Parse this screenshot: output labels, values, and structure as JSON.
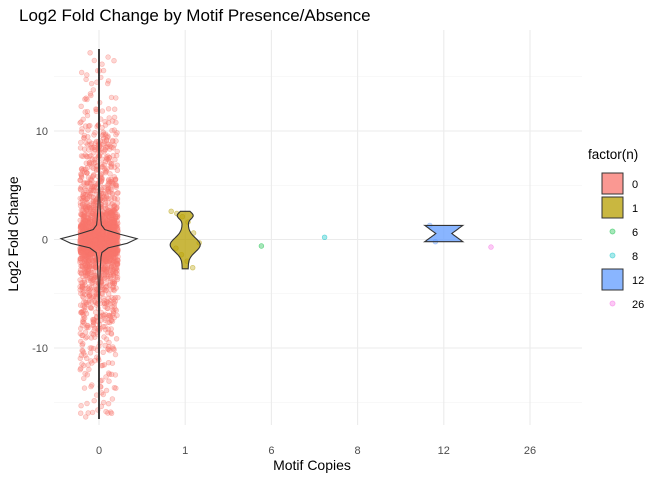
{
  "chart_data": {
    "type": "violin",
    "title": "Log2 Fold Change by Motif Presence/Absence",
    "xlabel": "Motif Copies",
    "ylabel": "Log2 Fold Change",
    "categories": [
      "0",
      "1",
      "6",
      "8",
      "12",
      "26"
    ],
    "y_ticks": [
      -10,
      0,
      10
    ],
    "ylim": [
      -17,
      18
    ],
    "grid": true,
    "legend": {
      "title": "factor(n)",
      "position": "right",
      "entries": [
        {
          "label": "0",
          "color": "#F8766D",
          "key": "violin"
        },
        {
          "label": "1",
          "color": "#B79F00",
          "key": "violin"
        },
        {
          "label": "6",
          "color": "#00BA38",
          "key": "point"
        },
        {
          "label": "8",
          "color": "#00BFC4",
          "key": "point"
        },
        {
          "label": "12",
          "color": "#619CFF",
          "key": "violin"
        },
        {
          "label": "26",
          "color": "#F564E3",
          "key": "point"
        }
      ]
    },
    "groups": [
      {
        "category": "0",
        "n_points_approx": 2000,
        "y_min": -16.5,
        "y_max": 17.5,
        "median": 0,
        "color": "#F8766D"
      },
      {
        "category": "1",
        "values": [
          2.6,
          2.4,
          2.1,
          1.6,
          0.6,
          -0.3,
          -0.8,
          -1.4,
          -2.0,
          -2.6
        ],
        "y_min": -2.7,
        "y_max": 2.6,
        "color": "#B79F00"
      },
      {
        "category": "6",
        "values": [
          -0.6
        ],
        "color": "#00BA38"
      },
      {
        "category": "8",
        "values": [
          0.2
        ],
        "color": "#00BFC4"
      },
      {
        "category": "12",
        "values": [
          1.3,
          -0.2
        ],
        "y_min": -0.2,
        "y_max": 1.3,
        "color": "#619CFF"
      },
      {
        "category": "26",
        "values": [
          -0.7
        ],
        "color": "#F564E3"
      }
    ]
  }
}
